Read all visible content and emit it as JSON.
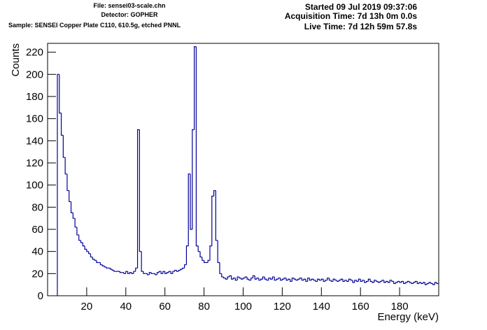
{
  "chart_data": {
    "type": "histogram",
    "header": {
      "file": "File: sensei03-scale.chn",
      "detector": "Detector: GOPHER",
      "sample": "Sample: SENSEI Copper Plate C110, 610.5g, etched PNNL",
      "started": "Started 09 Jul 2019 09:37:06",
      "acquisition": "Acquisition Time: 7d 13h 0m 0.0s",
      "live": "Live Time: 7d 12h 59m 57.8s"
    },
    "xlabel": "Energy (keV)",
    "ylabel": "Counts",
    "color": "#000099",
    "xlim": [
      0,
      200
    ],
    "ylim": [
      0,
      228
    ],
    "xticks": [
      20,
      40,
      60,
      80,
      100,
      120,
      140,
      160,
      180
    ],
    "yticks": [
      0,
      20,
      40,
      60,
      80,
      100,
      120,
      140,
      160,
      180,
      200,
      220
    ],
    "bins": [
      5,
      6,
      7,
      8,
      9,
      10,
      11,
      12,
      13,
      14,
      15,
      16,
      17,
      18,
      19,
      20,
      21,
      22,
      23,
      24,
      25,
      26,
      27,
      28,
      29,
      30,
      31,
      32,
      33,
      34,
      35,
      36,
      37,
      38,
      39,
      40,
      41,
      42,
      43,
      44,
      45,
      46,
      47,
      48,
      49,
      50,
      51,
      52,
      53,
      54,
      55,
      56,
      57,
      58,
      59,
      60,
      61,
      62,
      63,
      64,
      65,
      66,
      67,
      68,
      69,
      70,
      71,
      72,
      73,
      74,
      75,
      76,
      77,
      78,
      79,
      80,
      81,
      82,
      83,
      84,
      85,
      86,
      87,
      88,
      89,
      90,
      91,
      92,
      93,
      94,
      95,
      96,
      97,
      98,
      99,
      100,
      101,
      102,
      103,
      104,
      105,
      106,
      107,
      108,
      109,
      110,
      111,
      112,
      113,
      114,
      115,
      116,
      117,
      118,
      119,
      120,
      121,
      122,
      123,
      124,
      125,
      126,
      127,
      128,
      129,
      130,
      131,
      132,
      133,
      134,
      135,
      136,
      137,
      138,
      139,
      140,
      141,
      142,
      143,
      144,
      145,
      146,
      147,
      148,
      149,
      150,
      151,
      152,
      153,
      154,
      155,
      156,
      157,
      158,
      159,
      160,
      161,
      162,
      163,
      164,
      165,
      166,
      167,
      168,
      169,
      170,
      171,
      172,
      173,
      174,
      175,
      176,
      177,
      178,
      179,
      180,
      181,
      182,
      183,
      184,
      185,
      186,
      187,
      188,
      189,
      190,
      191,
      192,
      193,
      194,
      195,
      196,
      197,
      198,
      199,
      200
    ],
    "values": [
      200,
      165,
      145,
      125,
      110,
      95,
      85,
      75,
      70,
      62,
      55,
      50,
      48,
      45,
      42,
      40,
      38,
      35,
      33,
      32,
      30,
      30,
      28,
      27,
      26,
      25,
      25,
      24,
      23,
      22,
      22,
      22,
      21,
      21,
      20,
      22,
      20,
      21,
      20,
      22,
      25,
      150,
      40,
      22,
      20,
      20,
      19,
      21,
      20,
      20,
      19,
      21,
      22,
      20,
      22,
      20,
      21,
      22,
      20,
      22,
      23,
      22,
      23,
      24,
      25,
      28,
      45,
      110,
      60,
      150,
      225,
      45,
      40,
      35,
      32,
      30,
      30,
      32,
      45,
      90,
      95,
      50,
      30,
      20,
      17,
      16,
      15,
      17,
      18,
      15,
      16,
      14,
      17,
      16,
      15,
      16,
      17,
      15,
      14,
      16,
      18,
      15,
      16,
      14,
      15,
      17,
      15,
      14,
      16,
      15,
      17,
      14,
      15,
      16,
      14,
      15,
      16,
      14,
      15,
      13,
      16,
      15,
      14,
      15,
      16,
      14,
      15,
      13,
      16,
      14,
      15,
      14,
      13,
      15,
      14,
      15,
      13,
      14,
      16,
      14,
      13,
      15,
      14,
      13,
      14,
      15,
      13,
      14,
      13,
      15,
      14,
      12,
      14,
      13,
      15,
      13,
      14,
      12,
      13,
      15,
      13,
      12,
      14,
      13,
      12,
      13,
      14,
      12,
      13,
      12,
      14,
      13,
      11,
      12,
      13,
      12,
      13,
      11,
      12,
      13,
      12,
      11,
      12,
      13,
      11,
      12,
      11,
      12,
      10,
      11,
      12,
      11,
      10,
      12,
      11
    ]
  }
}
